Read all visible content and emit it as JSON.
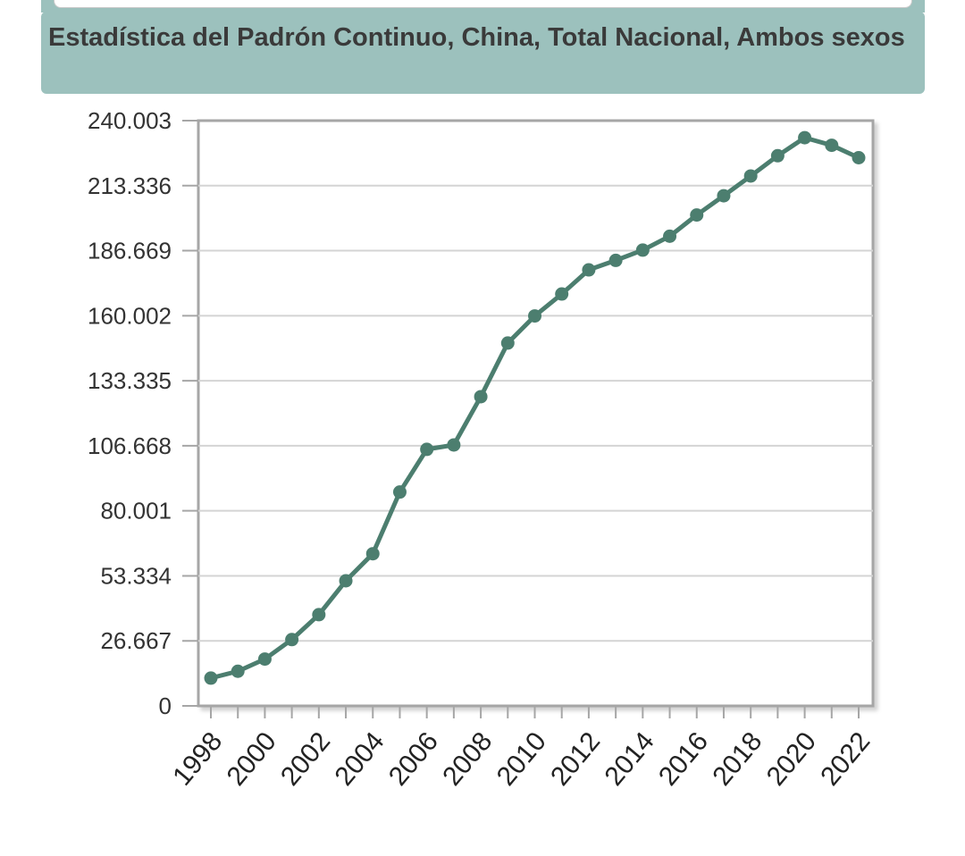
{
  "chart_data": {
    "type": "line",
    "title": "Estadística del Padrón Continuo, China, Total Nacional, Ambos sexos",
    "xlabel": "",
    "ylabel": "",
    "x": [
      1998,
      1999,
      2000,
      2001,
      2002,
      2003,
      2004,
      2005,
      2006,
      2007,
      2008,
      2009,
      2010,
      2011,
      2012,
      2013,
      2014,
      2015,
      2016,
      2017,
      2018,
      2019,
      2020,
      2021,
      2022
    ],
    "x_tick_labels": [
      "1998",
      "2000",
      "2002",
      "2004",
      "2006",
      "2008",
      "2010",
      "2012",
      "2014",
      "2016",
      "2018",
      "2020",
      "2022"
    ],
    "y_tick_labels": [
      "240.003",
      "213.336",
      "186.669",
      "160.002",
      "133.335",
      "106.668",
      "80.001",
      "53.334",
      "26.667",
      "0"
    ],
    "ylim": [
      0,
      240003
    ],
    "grid": true,
    "legend": "none",
    "series": [
      {
        "values": [
          11400,
          14200,
          19200,
          27200,
          37400,
          51300,
          62400,
          87700,
          105200,
          107000,
          126800,
          148800,
          159900,
          168900,
          178800,
          182700,
          186900,
          192600,
          201300,
          209200,
          217300,
          225600,
          233000,
          229900,
          224800
        ],
        "color": "#4c7e6f"
      }
    ]
  }
}
